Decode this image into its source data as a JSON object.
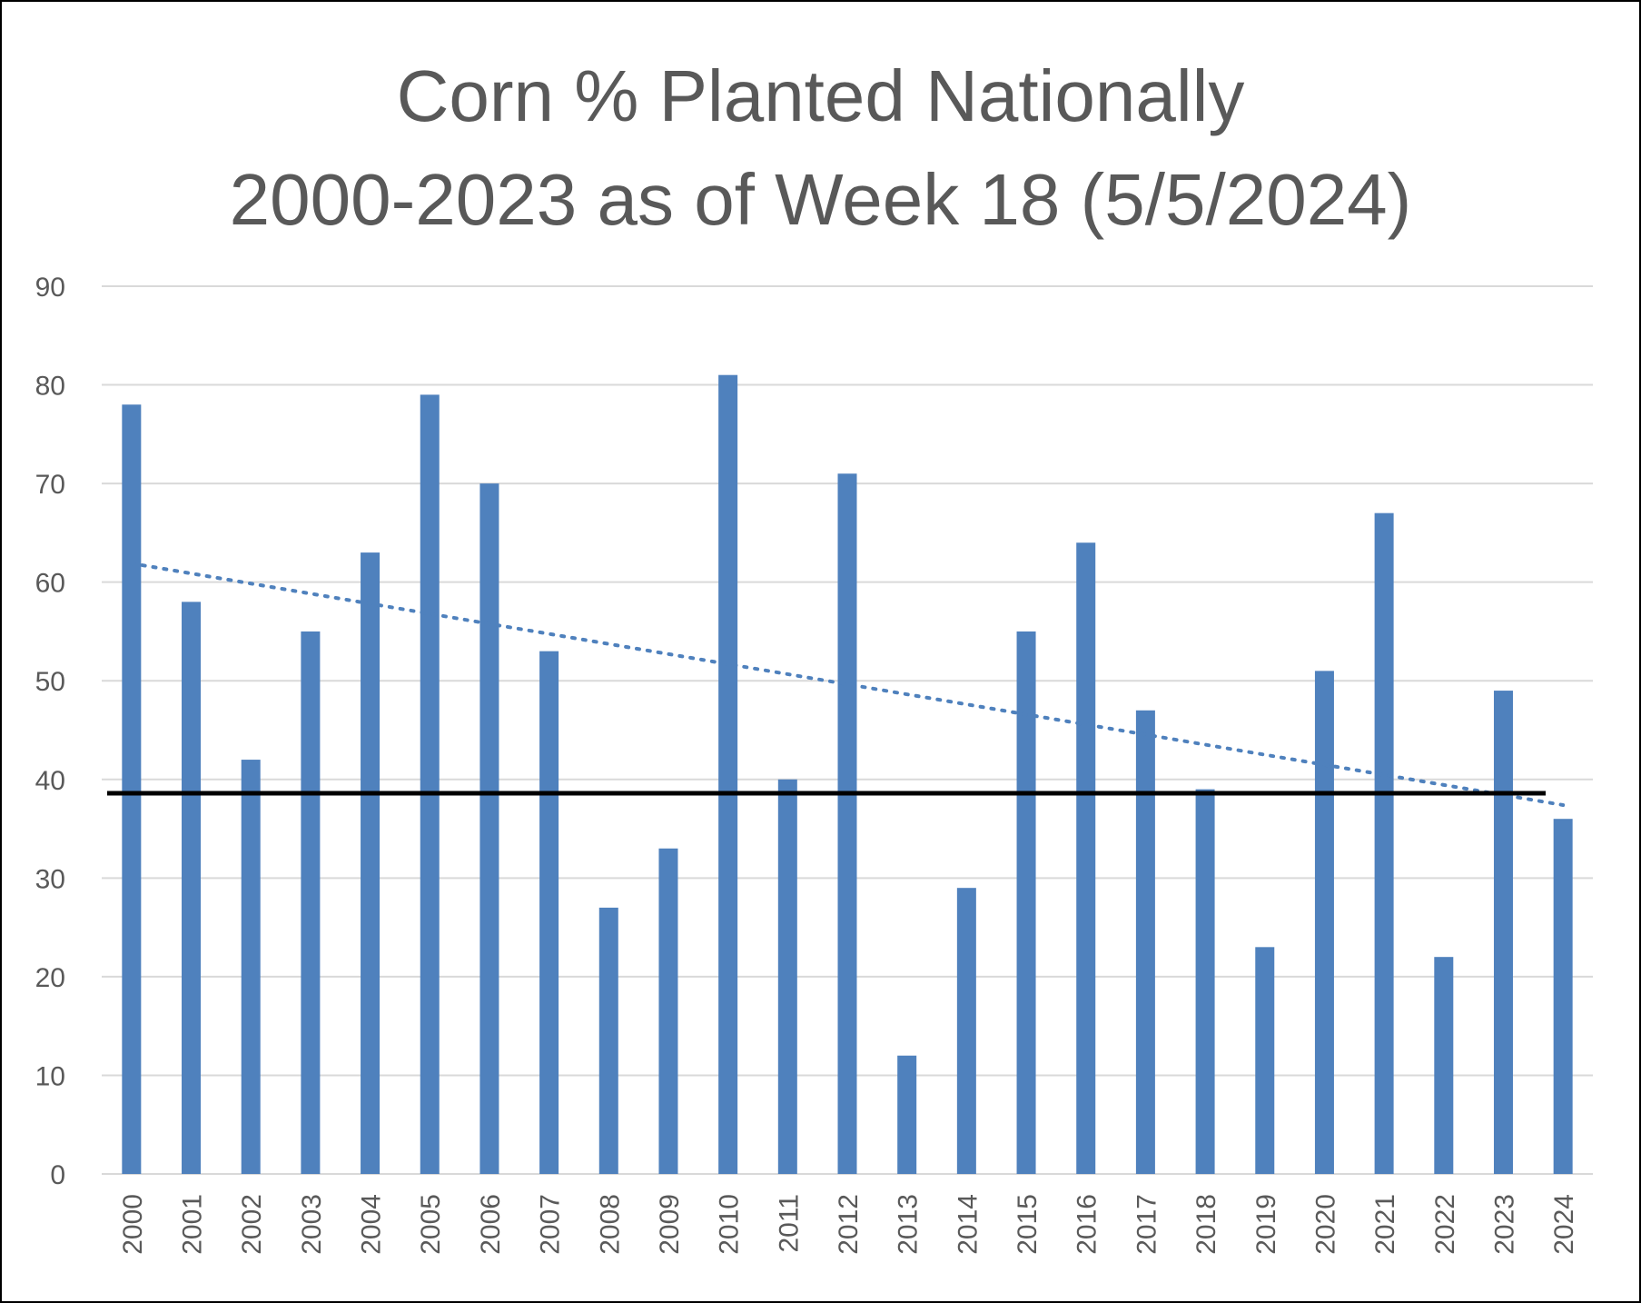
{
  "chart_data": {
    "type": "bar",
    "title": [
      "Corn % Planted Nationally",
      "2000-2023 as of Week 18 (5/5/2024)"
    ],
    "xlabel": "",
    "ylabel": "",
    "ylim": [
      0,
      90
    ],
    "yticks": [
      0,
      10,
      20,
      30,
      40,
      50,
      60,
      70,
      80,
      90
    ],
    "grid": true,
    "categories": [
      "2000",
      "2001",
      "2002",
      "2003",
      "2004",
      "2005",
      "2006",
      "2007",
      "2008",
      "2009",
      "2010",
      "2011",
      "2012",
      "2013",
      "2014",
      "2015",
      "2016",
      "2017",
      "2018",
      "2019",
      "2020",
      "2021",
      "2022",
      "2023",
      "2024"
    ],
    "values": [
      78,
      58,
      42,
      55,
      63,
      79,
      70,
      53,
      27,
      33,
      81,
      40,
      71,
      12,
      29,
      55,
      64,
      47,
      39,
      23,
      51,
      67,
      22,
      49,
      36
    ],
    "reference_line": {
      "value": 38.6,
      "color": "#000000"
    },
    "trendline": {
      "type": "linear",
      "style": "dotted",
      "start": 61.9,
      "end": 37.4,
      "color": "#4F81BD"
    },
    "bar_color": "#4F81BD",
    "legend": "none"
  }
}
